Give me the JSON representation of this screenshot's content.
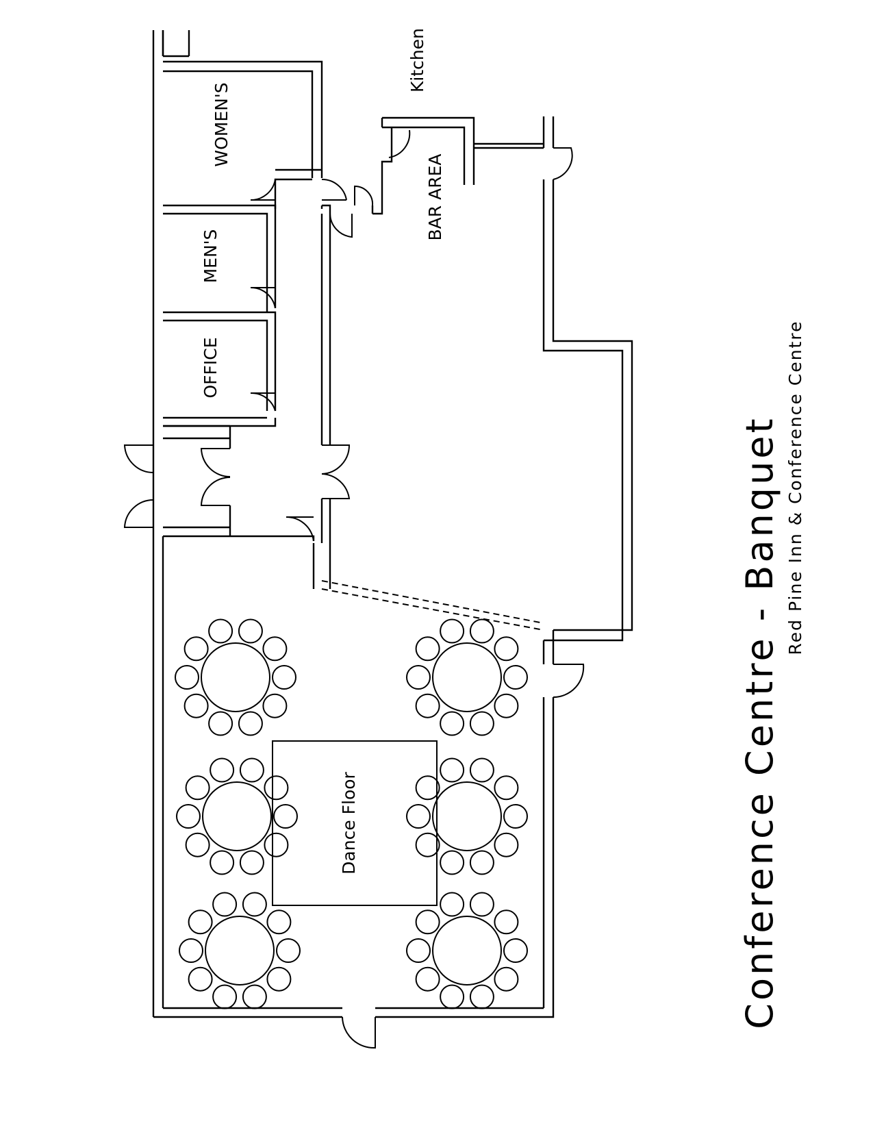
{
  "title": "Conference Centre - Banquet",
  "subtitle": "Red Pine Inn & Conference Centre",
  "rooms": {
    "kitchen": "Kitchen",
    "womens": "WOMEN'S",
    "mens": "MEN'S",
    "office": "OFFICE",
    "bar_area": "BAR AREA",
    "dance_floor": "Dance Floor"
  },
  "tables": {
    "count": 6,
    "chairs_per_table": 10
  }
}
